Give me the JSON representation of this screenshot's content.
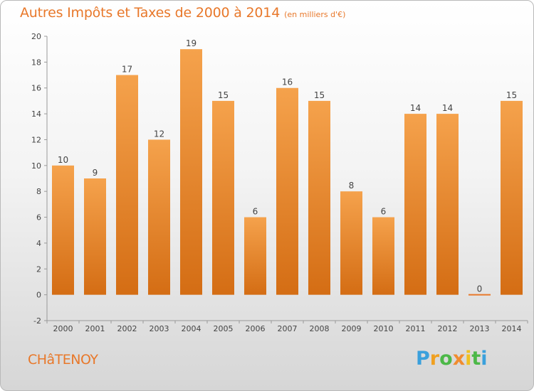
{
  "chart_data": {
    "type": "bar",
    "title": "Autres Impôts et Taxes de 2000 à 2014",
    "subtitle": "(en milliers d'€)",
    "categories": [
      "2000",
      "2001",
      "2002",
      "2003",
      "2004",
      "2005",
      "2006",
      "2007",
      "2008",
      "2009",
      "2010",
      "2011",
      "2012",
      "2013",
      "2014"
    ],
    "values": [
      10,
      9,
      17,
      12,
      19,
      15,
      6,
      16,
      15,
      8,
      6,
      14,
      14,
      0,
      15
    ],
    "data_labels": [
      "10",
      "9",
      "17",
      "12",
      "19",
      "15",
      "6",
      "16",
      "15",
      "8",
      "6",
      "14",
      "14",
      "0",
      "15"
    ],
    "ylim": [
      -2,
      20
    ],
    "yticks": [
      -2,
      0,
      2,
      4,
      6,
      8,
      10,
      12,
      14,
      16,
      18,
      20
    ],
    "ytick_labels": [
      "-2",
      "0",
      "2",
      "4",
      "6",
      "8",
      "10",
      "12",
      "14",
      "16",
      "18",
      "20"
    ],
    "grid": false,
    "bar_color": "#f08c2f",
    "xlabel": "",
    "ylabel": ""
  },
  "footer": {
    "commune": "CHâTENOY",
    "logo": [
      "P",
      "r",
      "o",
      "x",
      "i",
      "t",
      "i"
    ],
    "logo_colors": [
      "#3aa0dc",
      "#f0a020",
      "#4cb848",
      "#f08c2f",
      "#f0c020",
      "#4cb848",
      "#3aa0dc"
    ]
  }
}
